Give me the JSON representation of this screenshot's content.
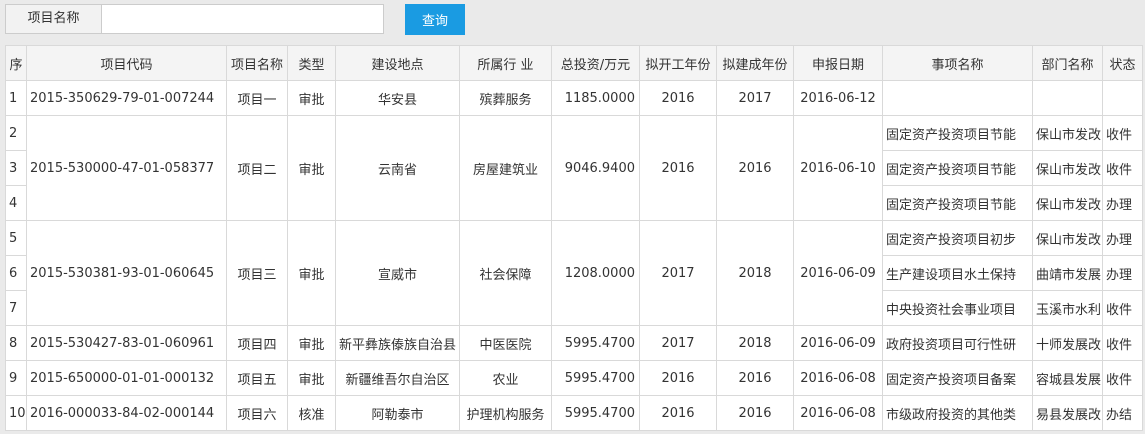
{
  "search": {
    "label": "项目名称",
    "placeholder": "",
    "value": "",
    "button_label": "查询"
  },
  "table": {
    "headers": [
      "序",
      "项目代码",
      "项目名称",
      "类型",
      "建设地点",
      "所属行 业",
      "总投资/万元",
      "拟开工年份",
      "拟建成年份",
      "申报日期",
      "事项名称",
      "部门名称",
      "状态"
    ],
    "projects": [
      {
        "code": "2015-350629-79-01-007244",
        "name": "项目一",
        "type": "审批",
        "location": "华安县",
        "industry": "殡葬服务",
        "investment": "1185.0000",
        "start": "2016",
        "end": "2017",
        "date": "2016-06-12",
        "items": [
          {
            "seq": "1",
            "matter": "",
            "dept": "",
            "status": ""
          }
        ]
      },
      {
        "code": "2015-530000-47-01-058377",
        "name": "项目二",
        "type": "审批",
        "location": "云南省",
        "industry": "房屋建筑业",
        "investment": "9046.9400",
        "start": "2016",
        "end": "2016",
        "date": "2016-06-10",
        "items": [
          {
            "seq": "2",
            "matter": "固定资产投资项目节能",
            "dept": "保山市发改",
            "status": "收件"
          },
          {
            "seq": "3",
            "matter": "固定资产投资项目节能",
            "dept": "保山市发改",
            "status": "收件"
          },
          {
            "seq": "4",
            "matter": "固定资产投资项目节能",
            "dept": "保山市发改",
            "status": "办理"
          }
        ]
      },
      {
        "code": "2015-530381-93-01-060645",
        "name": "项目三",
        "type": "审批",
        "location": "宣威市",
        "industry": "社会保障",
        "investment": "1208.0000",
        "start": "2017",
        "end": "2018",
        "date": "2016-06-09",
        "items": [
          {
            "seq": "5",
            "matter": "固定资产投资项目初步",
            "dept": "保山市发改",
            "status": "办理"
          },
          {
            "seq": "6",
            "matter": "生产建设项目水土保持",
            "dept": "曲靖市发展",
            "status": "办理"
          },
          {
            "seq": "7",
            "matter": "中央投资社会事业项目",
            "dept": "玉溪市水利",
            "status": "收件"
          }
        ]
      },
      {
        "code": "2015-530427-83-01-060961",
        "name": "项目四",
        "type": "审批",
        "location": "新平彝族傣族自治县",
        "industry": "中医医院",
        "investment": "5995.4700",
        "start": "2017",
        "end": "2018",
        "date": "2016-06-09",
        "items": [
          {
            "seq": "8",
            "matter": "政府投资项目可行性研",
            "dept": "十师发展改",
            "status": "收件"
          }
        ]
      },
      {
        "code": "2015-650000-01-01-000132",
        "name": "项目五",
        "type": "审批",
        "location": "新疆维吾尔自治区",
        "industry": "农业",
        "investment": "5995.4700",
        "start": "2016",
        "end": "2016",
        "date": "2016-06-08",
        "items": [
          {
            "seq": "9",
            "matter": "固定资产投资项目备案",
            "dept": "容城县发展",
            "status": "收件"
          }
        ]
      },
      {
        "code": "2016-000033-84-02-000144",
        "name": "项目六",
        "type": "核准",
        "location": "阿勒泰市",
        "industry": "护理机构服务",
        "investment": "5995.4700",
        "start": "2016",
        "end": "2016",
        "date": "2016-06-08",
        "items": [
          {
            "seq": "10",
            "matter": "市级政府投资的其他类",
            "dept": "易县发展改",
            "status": "办结"
          }
        ]
      }
    ]
  }
}
